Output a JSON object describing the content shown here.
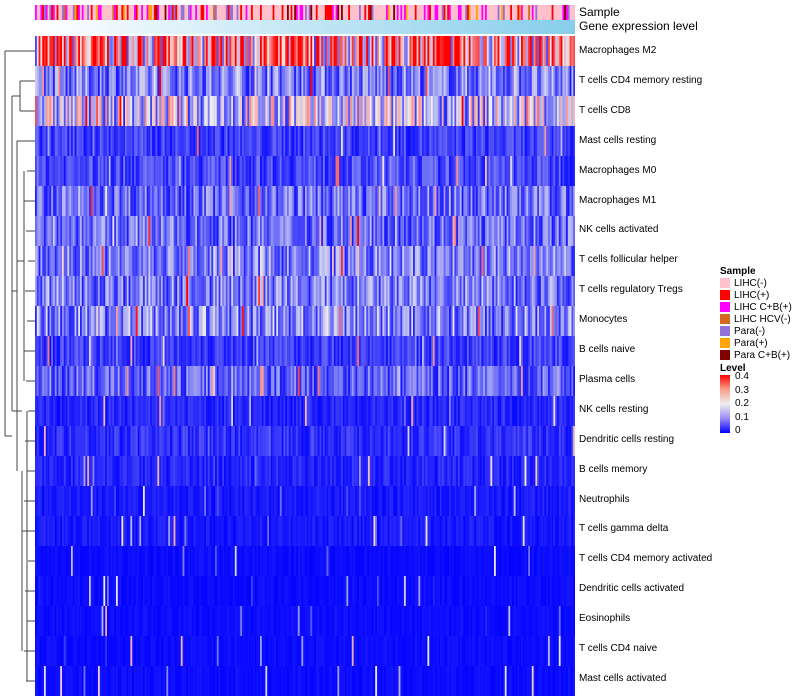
{
  "chart_data": {
    "type": "heatmap",
    "annotations": {
      "sample_label": "Sample",
      "gene_label": "Gene expression level"
    },
    "rows": [
      "Macrophages M2",
      "T cells CD4 memory resting",
      "T cells CD8",
      "Mast cells resting",
      "Macrophages M0",
      "Macrophages M1",
      "NK cells activated",
      "T cells follicular helper",
      "T cells regulatory  Tregs",
      "Monocytes",
      "B cells naive",
      "Plasma cells",
      "NK cells resting",
      "Dendritic cells resting",
      "B cells memory",
      "Neutrophils",
      "T cells gamma delta",
      "T cells CD4 memory activated",
      "Dendritic cells activated",
      "Eosinophils",
      "T cells CD4 naive",
      "Mast cells activated"
    ],
    "row_mean_level": [
      0.28,
      0.1,
      0.16,
      0.05,
      0.06,
      0.09,
      0.09,
      0.1,
      0.1,
      0.11,
      0.05,
      0.08,
      0.03,
      0.04,
      0.03,
      0.02,
      0.02,
      0.01,
      0.01,
      0.01,
      0.01,
      0.01
    ],
    "sample_legend": {
      "title": "Sample",
      "items": [
        {
          "label": "LIHC(-)",
          "color": "#ffc0cb"
        },
        {
          "label": "LIHC(+)",
          "color": "#ff0000"
        },
        {
          "label": "LIHC C+B(+)",
          "color": "#ff00ff"
        },
        {
          "label": "LIHC HCV(-)",
          "color": "#d2691e"
        },
        {
          "label": "Para(-)",
          "color": "#9370db"
        },
        {
          "label": "Para(+)",
          "color": "#ffa500"
        },
        {
          "label": "Para C+B(+)",
          "color": "#800000"
        }
      ]
    },
    "level_legend": {
      "title": "Level",
      "ticks": [
        "0.4",
        "0.3",
        "0.2",
        "0.1",
        "0"
      ],
      "range": [
        0,
        0.4
      ],
      "colors": [
        "#0000ff",
        "#eeeeee",
        "#ff0000"
      ]
    }
  }
}
